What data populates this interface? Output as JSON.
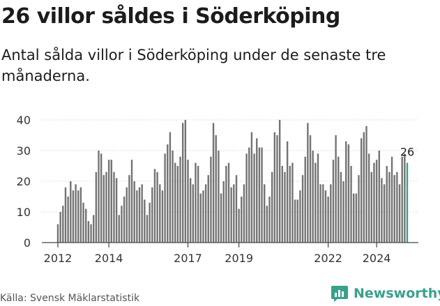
{
  "title": "26 villor såldes i Söderköping",
  "subtitle": "Antal sålda villor i Söderköping under de senaste tre månaderna.",
  "source": "Källa: Svensk Mäklarstatistik",
  "brand": "Newsworthy",
  "colors": {
    "bar": "#737373",
    "highlight": "#3aa08c",
    "brand": "#3aa08c",
    "axis": "#444444",
    "grid": "#dddddd"
  },
  "chart_data": {
    "type": "bar",
    "title": "26 villor såldes i Söderköping",
    "xlabel": "",
    "ylabel": "",
    "ylim": [
      0,
      40
    ],
    "yticks": [
      0,
      10,
      20,
      30,
      40
    ],
    "x_ticks": [
      "2012",
      "2014",
      "2017",
      "2019",
      "2022",
      "2024"
    ],
    "x_tick_index": [
      0,
      20,
      51,
      71,
      106,
      125
    ],
    "highlight_label": "26",
    "series": [
      {
        "name": "Sålda villor",
        "values": [
          6,
          10,
          12,
          18,
          15,
          20,
          17,
          19,
          17,
          18,
          13,
          11,
          7,
          6,
          9,
          23,
          30,
          29,
          22,
          23,
          27,
          27,
          23,
          21,
          9,
          12,
          15,
          18,
          22,
          27,
          20,
          17,
          18,
          19,
          14,
          9,
          13,
          18,
          24,
          23,
          19,
          17,
          29,
          32,
          36,
          30,
          26,
          25,
          28,
          39,
          40,
          27,
          21,
          19,
          26,
          25,
          16,
          17,
          19,
          22,
          28,
          39,
          35,
          30,
          16,
          20,
          25,
          26,
          18,
          19,
          22,
          11,
          15,
          19,
          29,
          31,
          36,
          29,
          34,
          31,
          31,
          19,
          12,
          15,
          23,
          36,
          35,
          40,
          25,
          23,
          33,
          25,
          26,
          14,
          14,
          17,
          22,
          28,
          39,
          35,
          30,
          26,
          29,
          19,
          19,
          17,
          15,
          19,
          27,
          35,
          28,
          23,
          20,
          33,
          32,
          25,
          16,
          16,
          22,
          34,
          36,
          38,
          29,
          23,
          26,
          27,
          30,
          21,
          19,
          25,
          23,
          28,
          22,
          23,
          19,
          28,
          29,
          26
        ]
      }
    ]
  }
}
